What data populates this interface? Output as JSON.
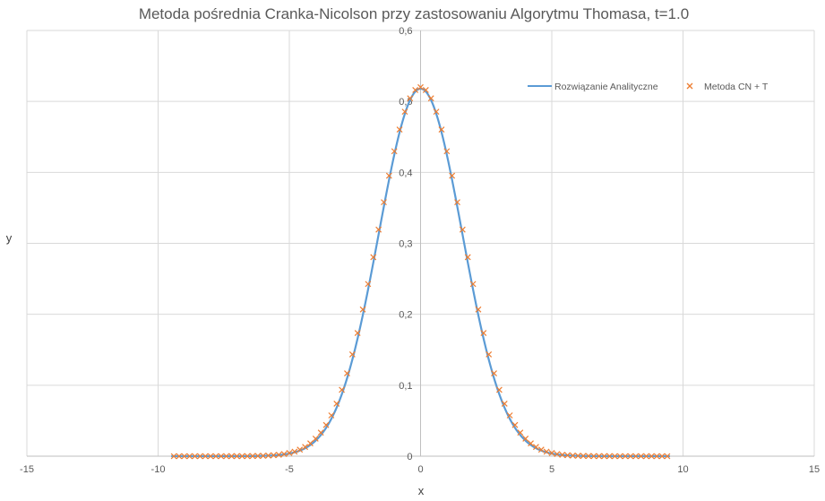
{
  "chart_data": {
    "type": "scatter",
    "title": "Metoda pośrednia Cranka-Nicolson przy zastosowaniu Algorytmu Thomasa, t=1.0",
    "xlabel": "x",
    "ylabel": "y",
    "xlim": [
      -15,
      15
    ],
    "ylim": [
      0,
      0.6
    ],
    "xticks": [
      "-15",
      "-10",
      "-5",
      "0",
      "5",
      "10",
      "15"
    ],
    "yticks": [
      "0",
      "0,1",
      "0,2",
      "0,3",
      "0,4",
      "0,5",
      "0,6"
    ],
    "grid": true,
    "legend_position": "top-right",
    "series": [
      {
        "name": "Rozwiązanie Analityczne",
        "kind": "line",
        "color": "#5B9BD5",
        "x_range": [
          -9.5,
          9.5
        ],
        "peak": 0.518,
        "sigma": 1.59
      },
      {
        "name": "Metoda CN + T",
        "kind": "markers",
        "marker": "x",
        "color": "#ED7D31",
        "x_start": -9.4,
        "x_step": 0.2,
        "count": 95,
        "peak": 0.52,
        "sigma": 1.62
      }
    ]
  }
}
